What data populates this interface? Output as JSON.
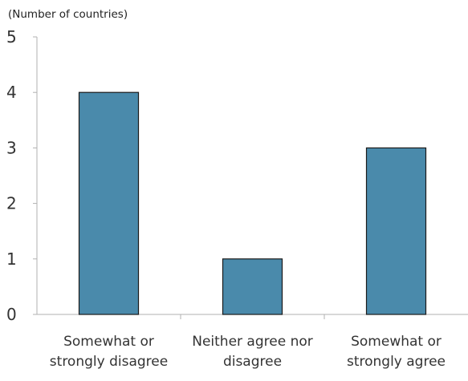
{
  "chart_data": {
    "type": "bar",
    "unit_note": "(Number of countries)",
    "categories": [
      [
        "Somewhat or",
        "strongly disagree"
      ],
      [
        "Neither agree nor",
        "disagree"
      ],
      [
        "Somewhat or",
        "strongly agree"
      ]
    ],
    "values": [
      4,
      1,
      3
    ],
    "y_ticks": [
      "0",
      "1",
      "2",
      "3",
      "4",
      "5"
    ],
    "ylim": [
      0,
      5
    ],
    "grid": false,
    "bar_color": "#4a8aab",
    "bar_edge_color": "#1a1a1a",
    "axis_color": "#b0b0b0"
  }
}
